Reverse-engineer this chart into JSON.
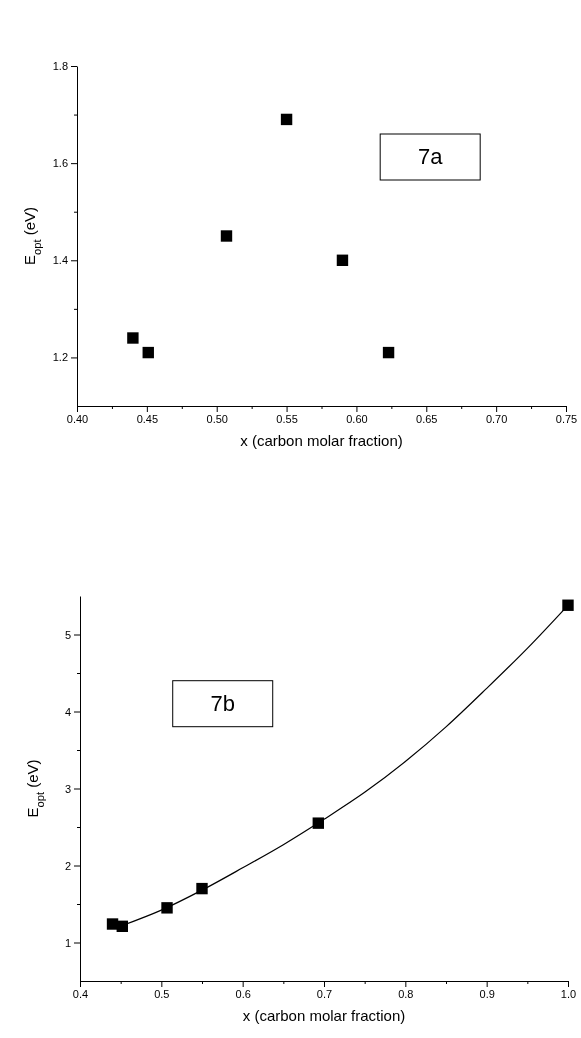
{
  "chart_data": [
    {
      "type": "scatter",
      "xlabel": "x (carbon molar fraction)",
      "ylabel": "E$_{opt}$ (eV)",
      "annotations": [
        "7a"
      ],
      "marker": "square",
      "grid": false,
      "xlim": [
        0.4,
        0.75
      ],
      "xticks": [
        {
          "value": 0.4,
          "label": "0.40"
        },
        {
          "value": 0.425,
          "label": null
        },
        {
          "value": 0.45,
          "label": "0.45"
        },
        {
          "value": 0.475,
          "label": null
        },
        {
          "value": 0.5,
          "label": "0.50"
        },
        {
          "value": 0.525,
          "label": null
        },
        {
          "value": 0.55,
          "label": "0.55"
        },
        {
          "value": 0.575,
          "label": null
        },
        {
          "value": 0.6,
          "label": "0.60"
        },
        {
          "value": 0.625,
          "label": null
        },
        {
          "value": 0.65,
          "label": "0.65"
        },
        {
          "value": 0.675,
          "label": null
        },
        {
          "value": 0.7,
          "label": "0.70"
        },
        {
          "value": 0.725,
          "label": null
        },
        {
          "value": 0.75,
          "label": "0.75"
        }
      ],
      "ylim": [
        1.1,
        1.8
      ],
      "yticks": [
        1.2,
        {
          "value": 1.3,
          "label": null
        },
        1.4,
        {
          "value": 1.5,
          "label": null
        },
        1.6,
        {
          "value": 1.7,
          "label": null
        },
        1.8
      ],
      "series": [
        {
          "color": "#000000",
          "x": [
            0.44,
            0.451,
            0.507,
            0.55,
            0.59,
            0.623
          ],
          "values": [
            1.24,
            1.21,
            1.45,
            1.69,
            1.4,
            1.21
          ]
        }
      ]
    },
    {
      "type": "scatter",
      "xlabel": "x (carbon molar fraction)",
      "ylabel": "E$_{opt}$ (eV)",
      "annotations": [
        "7b"
      ],
      "marker": "square",
      "grid": false,
      "xlim": [
        0.4,
        1.0
      ],
      "xticks": [
        0.4,
        {
          "value": 0.45,
          "label": null
        },
        0.5,
        {
          "value": 0.55,
          "label": null
        },
        0.6,
        {
          "value": 0.65,
          "label": null
        },
        0.7,
        {
          "value": 0.75,
          "label": null
        },
        0.8,
        {
          "value": 0.85,
          "label": null
        },
        0.9,
        {
          "value": 0.95,
          "label": null
        },
        {
          "value": 1.0,
          "label": "1.0"
        }
      ],
      "ylim": [
        0.5,
        5.5
      ],
      "yticks": [
        1,
        {
          "value": 1.5,
          "label": null
        },
        2,
        {
          "value": 2.5,
          "label": null
        },
        3,
        {
          "value": 3.5,
          "label": null
        },
        4,
        {
          "value": 4.5,
          "label": null
        },
        5
      ],
      "series": [
        {
          "color": "#000000",
          "x": [
            0.44,
            0.452,
            0.507,
            0.55,
            0.693,
            1.0
          ],
          "values": [
            1.24,
            1.21,
            1.45,
            1.7,
            2.55,
            5.38
          ]
        },
        {
          "type": "line",
          "color": "#000000",
          "marker": "none",
          "line_style": "solid",
          "x": [
            0.452,
            0.5,
            0.55,
            0.6,
            0.65,
            0.7,
            0.75,
            0.8,
            0.85,
            0.9,
            0.95,
            1.0
          ],
          "values": [
            1.22,
            1.42,
            1.68,
            1.97,
            2.27,
            2.6,
            2.95,
            3.35,
            3.8,
            4.3,
            4.82,
            5.38
          ]
        }
      ]
    }
  ]
}
